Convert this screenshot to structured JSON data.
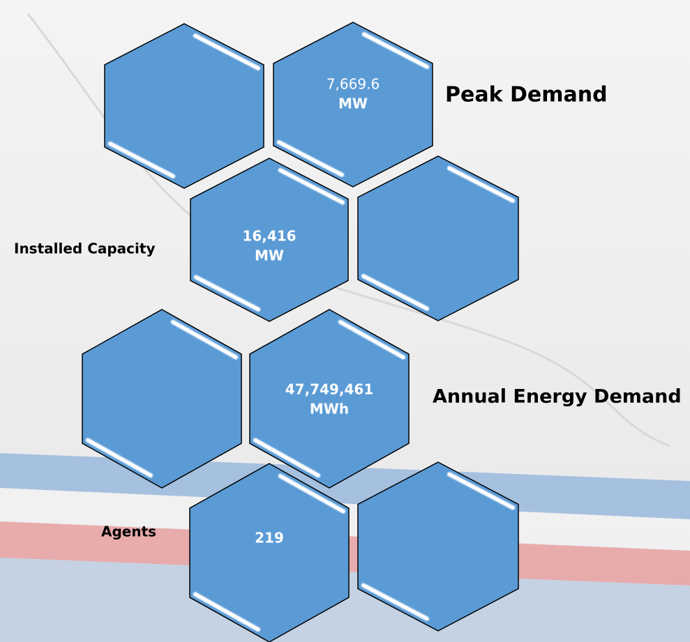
{
  "items": [
    {
      "value": "7,669.6",
      "unit": "MW",
      "label": "Peak Demand"
    },
    {
      "value": "16,416",
      "unit": "MW",
      "label": "Installed Capacity"
    },
    {
      "value": "47,749,461",
      "unit": "MWh",
      "label": "Annual Energy Demand"
    },
    {
      "value": "219",
      "label": "Agents"
    }
  ]
}
